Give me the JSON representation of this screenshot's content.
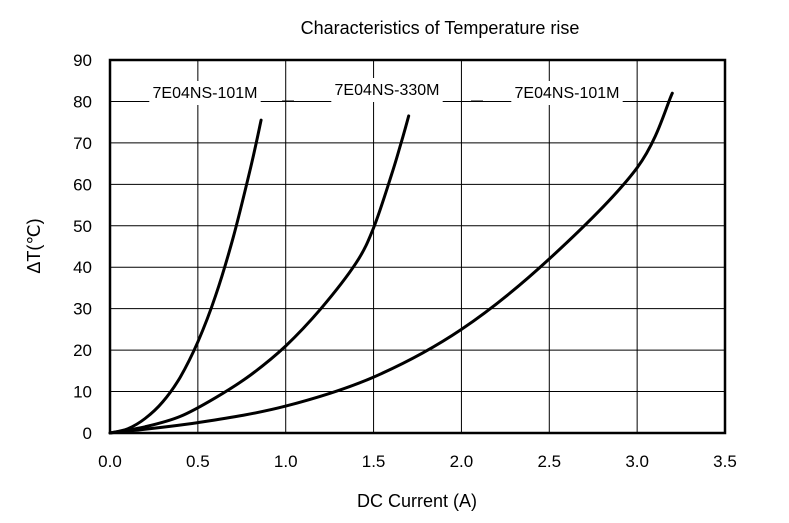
{
  "chart_data": {
    "type": "line",
    "title": "Characteristics  of  Temperature rise",
    "xlabel": "DC Current (A)",
    "ylabel": "ΔT(℃)",
    "xlim": [
      0,
      3.5
    ],
    "ylim": [
      0,
      90
    ],
    "x_ticks": [
      "0.0",
      "0.5",
      "1.0",
      "1.5",
      "2.0",
      "2.5",
      "3.0",
      "3.5"
    ],
    "y_ticks": [
      "0",
      "10",
      "20",
      "30",
      "40",
      "50",
      "60",
      "70",
      "80",
      "90"
    ],
    "grid": true,
    "colors": {
      "line": "#000000",
      "grid": "#000000",
      "label_bg": "#ffffff"
    },
    "series": [
      {
        "name": "7E04NS-101M",
        "points": [
          [
            0,
            0
          ],
          [
            0.1,
            1
          ],
          [
            0.2,
            3.5
          ],
          [
            0.3,
            7.5
          ],
          [
            0.4,
            13.5
          ],
          [
            0.5,
            22
          ],
          [
            0.6,
            33
          ],
          [
            0.7,
            47
          ],
          [
            0.8,
            64
          ],
          [
            0.86,
            75.5
          ]
        ]
      },
      {
        "name": "7E04NS-330M",
        "points": [
          [
            0,
            0
          ],
          [
            0.2,
            1.5
          ],
          [
            0.4,
            4
          ],
          [
            0.6,
            8.5
          ],
          [
            0.8,
            14
          ],
          [
            1.0,
            21
          ],
          [
            1.2,
            30
          ],
          [
            1.4,
            41
          ],
          [
            1.5,
            49.5
          ],
          [
            1.6,
            62
          ],
          [
            1.65,
            69
          ],
          [
            1.7,
            76.5
          ]
        ]
      },
      {
        "name": "7E04NS-101M",
        "points": [
          [
            0,
            0
          ],
          [
            0.5,
            2.5
          ],
          [
            1.0,
            6.5
          ],
          [
            1.5,
            13.5
          ],
          [
            2.0,
            25
          ],
          [
            2.5,
            42
          ],
          [
            3.0,
            64
          ],
          [
            3.2,
            82
          ]
        ]
      }
    ],
    "annotations": [
      "7E04NS-101M",
      "7E04NS-330M",
      "7E04NS-101M"
    ]
  }
}
